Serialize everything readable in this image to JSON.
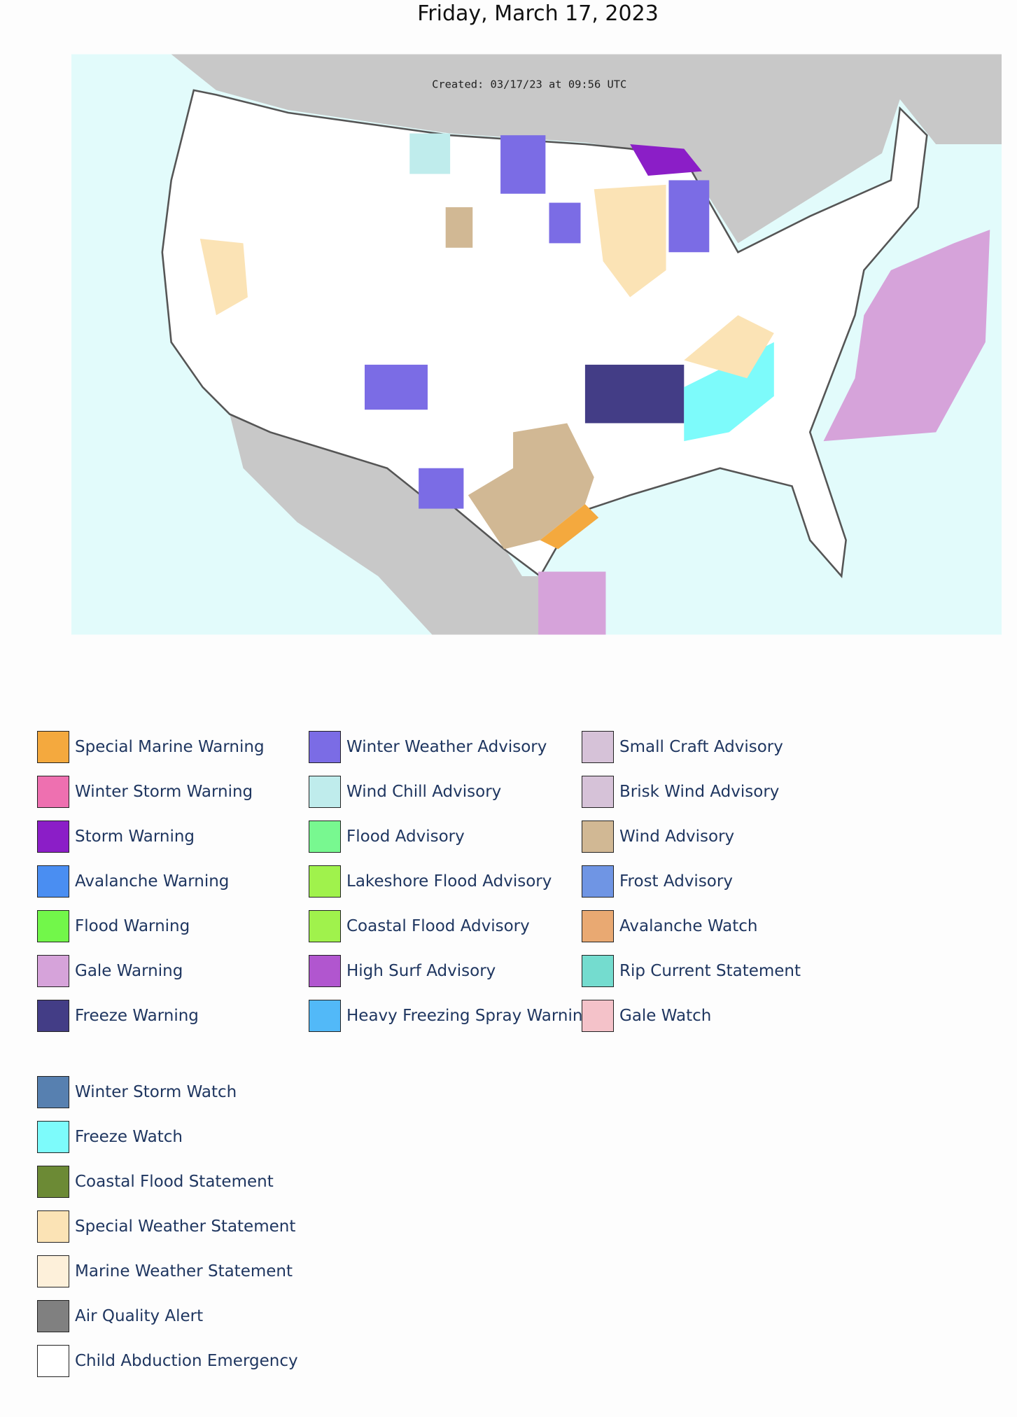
{
  "header": {
    "title": "Friday, March 17, 2023"
  },
  "map": {
    "caption": "Created: 03/17/23 at 09:56 UTC"
  },
  "legend": {
    "columns": [
      [
        {
          "label": "Special Marine Warning",
          "color": "#f4a93e"
        },
        {
          "label": "Winter Storm Warning",
          "color": "#ee70b0"
        },
        {
          "label": "Storm Warning",
          "color": "#8b1ec7"
        },
        {
          "label": "Avalanche Warning",
          "color": "#4a8ef2"
        },
        {
          "label": "Flood Warning",
          "color": "#72f74a"
        },
        {
          "label": "Gale Warning",
          "color": "#d6a3da"
        },
        {
          "label": "Freeze Warning",
          "color": "#433d86"
        }
      ],
      [
        {
          "label": "Winter Weather Advisory",
          "color": "#7b6ce5"
        },
        {
          "label": "Wind Chill Advisory",
          "color": "#bfecec"
        },
        {
          "label": "Flood Advisory",
          "color": "#78f890"
        },
        {
          "label": "Lakeshore Flood Advisory",
          "color": "#a0f24c"
        },
        {
          "label": "Coastal Flood Advisory",
          "color": "#a0f24c"
        },
        {
          "label": "High Surf Advisory",
          "color": "#b156cf"
        },
        {
          "label": "Heavy Freezing Spray Warning",
          "color": "#52b9f8"
        }
      ],
      [
        {
          "label": "Small Craft Advisory",
          "color": "#d6c2d8"
        },
        {
          "label": "Brisk Wind Advisory",
          "color": "#d6c2d8"
        },
        {
          "label": "Wind Advisory",
          "color": "#d1b894"
        },
        {
          "label": "Frost Advisory",
          "color": "#6f95e4"
        },
        {
          "label": "Avalanche Watch",
          "color": "#e9a972"
        },
        {
          "label": "Rip Current Statement",
          "color": "#74dccf"
        },
        {
          "label": "Gale Watch",
          "color": "#f4c2c9"
        }
      ]
    ],
    "more": [
      {
        "label": "Winter Storm Watch",
        "color": "#5780b0"
      },
      {
        "label": "Freeze Watch",
        "color": "#7dfbfb"
      },
      {
        "label": "Coastal Flood Statement",
        "color": "#6c8a35"
      },
      {
        "label": "Special Weather Statement",
        "color": "#fbe3b5"
      },
      {
        "label": "Marine Weather Statement",
        "color": "#fdf0da"
      },
      {
        "label": "Air Quality Alert",
        "color": "#808080"
      },
      {
        "label": "Child Abduction Emergency",
        "color": "#ffffff"
      }
    ]
  }
}
